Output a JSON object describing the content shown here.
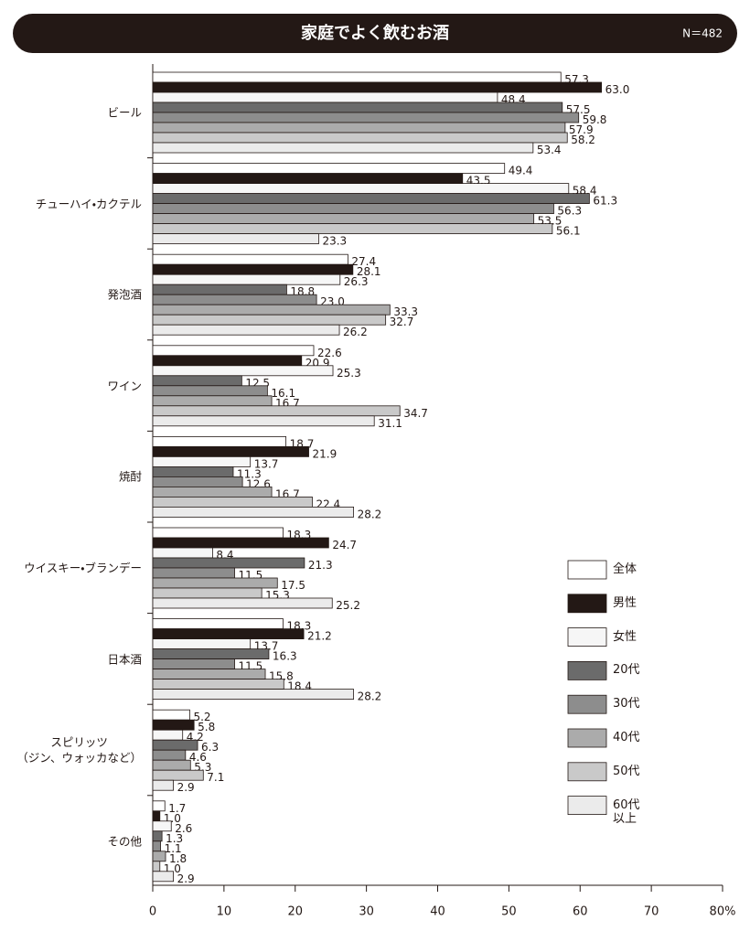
{
  "chart_data": {
    "type": "bar",
    "orientation": "horizontal",
    "title": "家庭でよく飲むお酒",
    "note": "N＝482",
    "categories": [
      "ビール",
      "チューハイ・カクテル",
      "発泡酒",
      "ワイン",
      "焼酎",
      "ウイスキー・ブランデー",
      "日本酒",
      "スピリッツ\n（ジン、ウォッカなど）",
      "その他"
    ],
    "xlim": [
      0,
      80
    ],
    "xticks": [
      0,
      10,
      20,
      30,
      40,
      50,
      60,
      70,
      {
        "value": 80,
        "label": "80%"
      }
    ],
    "series": [
      {
        "name": "全体",
        "color": "#ffffff",
        "values": [
          57.3,
          49.4,
          27.4,
          22.6,
          18.7,
          18.3,
          18.3,
          5.2,
          1.7
        ],
        "value_labels": [
          "57.3",
          "49.4",
          "27.4",
          "22.6",
          "18.7",
          "18.3",
          "18.3",
          "5.2",
          "1.7"
        ]
      },
      {
        "name": "男性",
        "color": "#231815",
        "values": [
          63.0,
          43.5,
          28.1,
          20.9,
          21.9,
          24.7,
          21.2,
          5.8,
          1.0
        ],
        "value_labels": [
          "63.0",
          "43.5",
          "28.1",
          "20.9",
          "21.9",
          "24.7",
          "21.2",
          "5.8",
          "1.0"
        ]
      },
      {
        "name": "女性",
        "color": "#f6f6f6",
        "values": [
          48.4,
          58.4,
          26.3,
          25.3,
          13.7,
          8.4,
          13.7,
          4.2,
          2.6
        ],
        "value_labels": [
          "48.4",
          "58.4",
          "26.3",
          "25.3",
          "13.7",
          "8.4",
          "13.7",
          "4.2",
          "2.6"
        ]
      },
      {
        "name": "20代",
        "color": "#6b6b6b",
        "values": [
          57.5,
          61.3,
          18.8,
          12.5,
          11.3,
          21.3,
          16.3,
          6.3,
          1.3
        ],
        "value_labels": [
          "57.5",
          "61.3",
          "18.8",
          "12.5",
          "11.3",
          "21.3",
          "16.3",
          "6.3",
          "1.3"
        ]
      },
      {
        "name": "30代",
        "color": "#8d8d8d",
        "values": [
          59.8,
          56.3,
          23.0,
          16.1,
          12.6,
          11.5,
          11.5,
          4.6,
          1.1
        ],
        "value_labels": [
          "59.8",
          "56.3",
          "23.0",
          "16.1",
          "12.6",
          "11.5",
          "11.5",
          "4.6",
          "1.1"
        ]
      },
      {
        "name": "40代",
        "color": "#ababab",
        "values": [
          57.9,
          53.5,
          33.3,
          16.7,
          16.7,
          17.5,
          15.8,
          5.3,
          1.8
        ],
        "value_labels": [
          "57.9",
          "53.5",
          "33.3",
          "16.7",
          "16.7",
          "17.5",
          "15.8",
          "5.3",
          "1.8"
        ]
      },
      {
        "name": "50代",
        "color": "#c9c9c9",
        "values": [
          58.2,
          56.1,
          32.7,
          34.7,
          22.4,
          15.3,
          18.4,
          7.1,
          1.0
        ],
        "value_labels": [
          "58.2",
          "56.1",
          "32.7",
          "34.7",
          "22.4",
          "15.3",
          "18.4",
          "7.1",
          "1.0"
        ]
      },
      {
        "name": "60代\n以上",
        "color": "#ebebeb",
        "values": [
          53.4,
          23.3,
          26.2,
          31.1,
          28.2,
          25.2,
          28.2,
          2.9,
          2.9
        ],
        "value_labels": [
          "53.4",
          "23.3",
          "26.2",
          "31.1",
          "28.2",
          "25.2",
          "28.2",
          "2.9",
          "2.9"
        ]
      }
    ]
  }
}
